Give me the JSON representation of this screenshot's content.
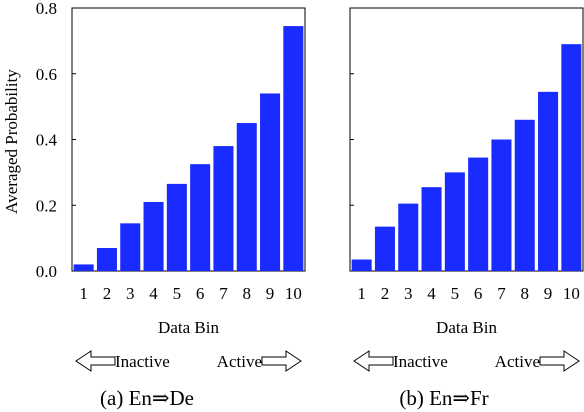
{
  "chart_data": [
    {
      "type": "bar",
      "caption": "(a) En⇒De",
      "xlabel": "Data Bin",
      "ylabel": "Averaged Probability",
      "categories": [
        "1",
        "2",
        "3",
        "4",
        "5",
        "6",
        "7",
        "8",
        "9",
        "10"
      ],
      "values": [
        0.02,
        0.07,
        0.145,
        0.21,
        0.265,
        0.325,
        0.38,
        0.45,
        0.54,
        0.745
      ],
      "ylim": [
        0,
        0.8
      ],
      "yticks": [
        0,
        0.2,
        0.4,
        0.6,
        0.8
      ],
      "ytick_labels": [
        "0.0",
        "0.2",
        "0.4",
        "0.6",
        "0.8"
      ],
      "show_ytick_labels": true,
      "bar_color": "#1a2bff",
      "grid": false,
      "arrow_left_label": "Inactive",
      "arrow_right_label": "Active"
    },
    {
      "type": "bar",
      "caption": "(b) En⇒Fr",
      "xlabel": "Data Bin",
      "ylabel": "",
      "categories": [
        "1",
        "2",
        "3",
        "4",
        "5",
        "6",
        "7",
        "8",
        "9",
        "10"
      ],
      "values": [
        0.035,
        0.135,
        0.205,
        0.255,
        0.3,
        0.345,
        0.4,
        0.46,
        0.545,
        0.69
      ],
      "ylim": [
        0,
        0.8
      ],
      "yticks": [
        0,
        0.2,
        0.4,
        0.6,
        0.8
      ],
      "ytick_labels": [
        "",
        "",
        "",
        "",
        ""
      ],
      "show_ytick_labels": false,
      "bar_color": "#1a2bff",
      "grid": false,
      "arrow_left_label": "Inactive",
      "arrow_right_label": "Active"
    }
  ]
}
